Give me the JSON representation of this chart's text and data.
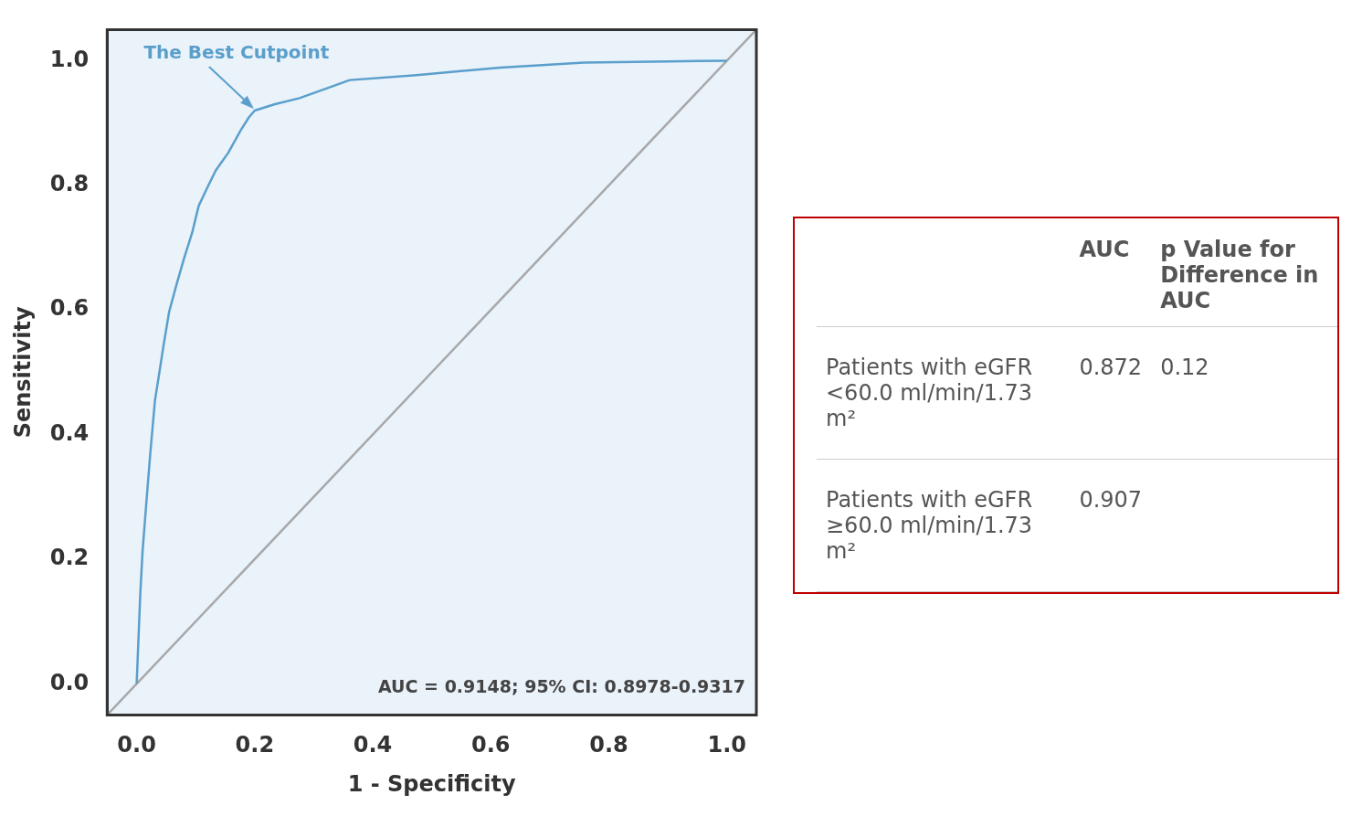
{
  "chart_data": [
    {
      "type": "line",
      "xlabel": "1 - Specificity",
      "ylabel": "Sensitivity",
      "xlim": [
        -0.05,
        1.05
      ],
      "ylim": [
        -0.05,
        1.05
      ],
      "xticks": [
        {
          "value": 0,
          "label": "0.0"
        },
        {
          "value": 0.2,
          "label": "0.2"
        },
        {
          "value": 0.4,
          "label": "0.4"
        },
        {
          "value": 0.6,
          "label": "0.6"
        },
        {
          "value": 0.8,
          "label": "0.8"
        },
        {
          "value": 1,
          "label": "1.0"
        }
      ],
      "yticks": [
        {
          "value": 0,
          "label": "0.0"
        },
        {
          "value": 0.2,
          "label": "0.2"
        },
        {
          "value": 0.4,
          "label": "0.4"
        },
        {
          "value": 0.6,
          "label": "0.6"
        },
        {
          "value": 0.8,
          "label": "0.8"
        },
        {
          "value": 1,
          "label": "1.0"
        }
      ],
      "series": [
        {
          "color": "#5a9fcb",
          "x": [
            0,
            0.006,
            0.01,
            0.017,
            0.023,
            0.031,
            0.038,
            0.045,
            0.055,
            0.067,
            0.08,
            0.094,
            0.105,
            0.119,
            0.134,
            0.155,
            0.176,
            0.19,
            0.2,
            0.233,
            0.276,
            0.332,
            0.361,
            0.474,
            0.616,
            0.758,
            0.9,
            1
          ],
          "values": [
            0,
            0.142,
            0.213,
            0.298,
            0.369,
            0.455,
            0.497,
            0.54,
            0.597,
            0.639,
            0.682,
            0.724,
            0.767,
            0.795,
            0.824,
            0.852,
            0.888,
            0.909,
            0.92,
            0.93,
            0.94,
            0.959,
            0.969,
            0.977,
            0.989,
            0.997,
            0.999,
            1
          ]
        },
        {
          "color": "#a8a8a8",
          "x": [
            -0.05,
            1.05
          ],
          "values": [
            -0.05,
            1.05
          ]
        }
      ],
      "annotations": [
        {
          "text": "The Best Cutpoint",
          "x": 0.2,
          "y": 0.92
        },
        "AUC = 0.9148; 95% CI: 0.8978-0.9317"
      ]
    },
    {
      "type": "other",
      "categories": [
        "Patients with eGFR <60.0 ml/min/1.73 m²",
        "Patients with eGFR ≥60.0 ml/min/1.73 m²"
      ],
      "series": [
        {
          "name": "AUC",
          "values": [
            0.872,
            0.907
          ],
          "value_labels": [
            "0.872",
            "0.907"
          ]
        },
        {
          "name": "p Value for Difference in AUC",
          "values": [
            0.12,
            null
          ],
          "value_labels": [
            "0.12",
            null
          ]
        }
      ]
    }
  ]
}
